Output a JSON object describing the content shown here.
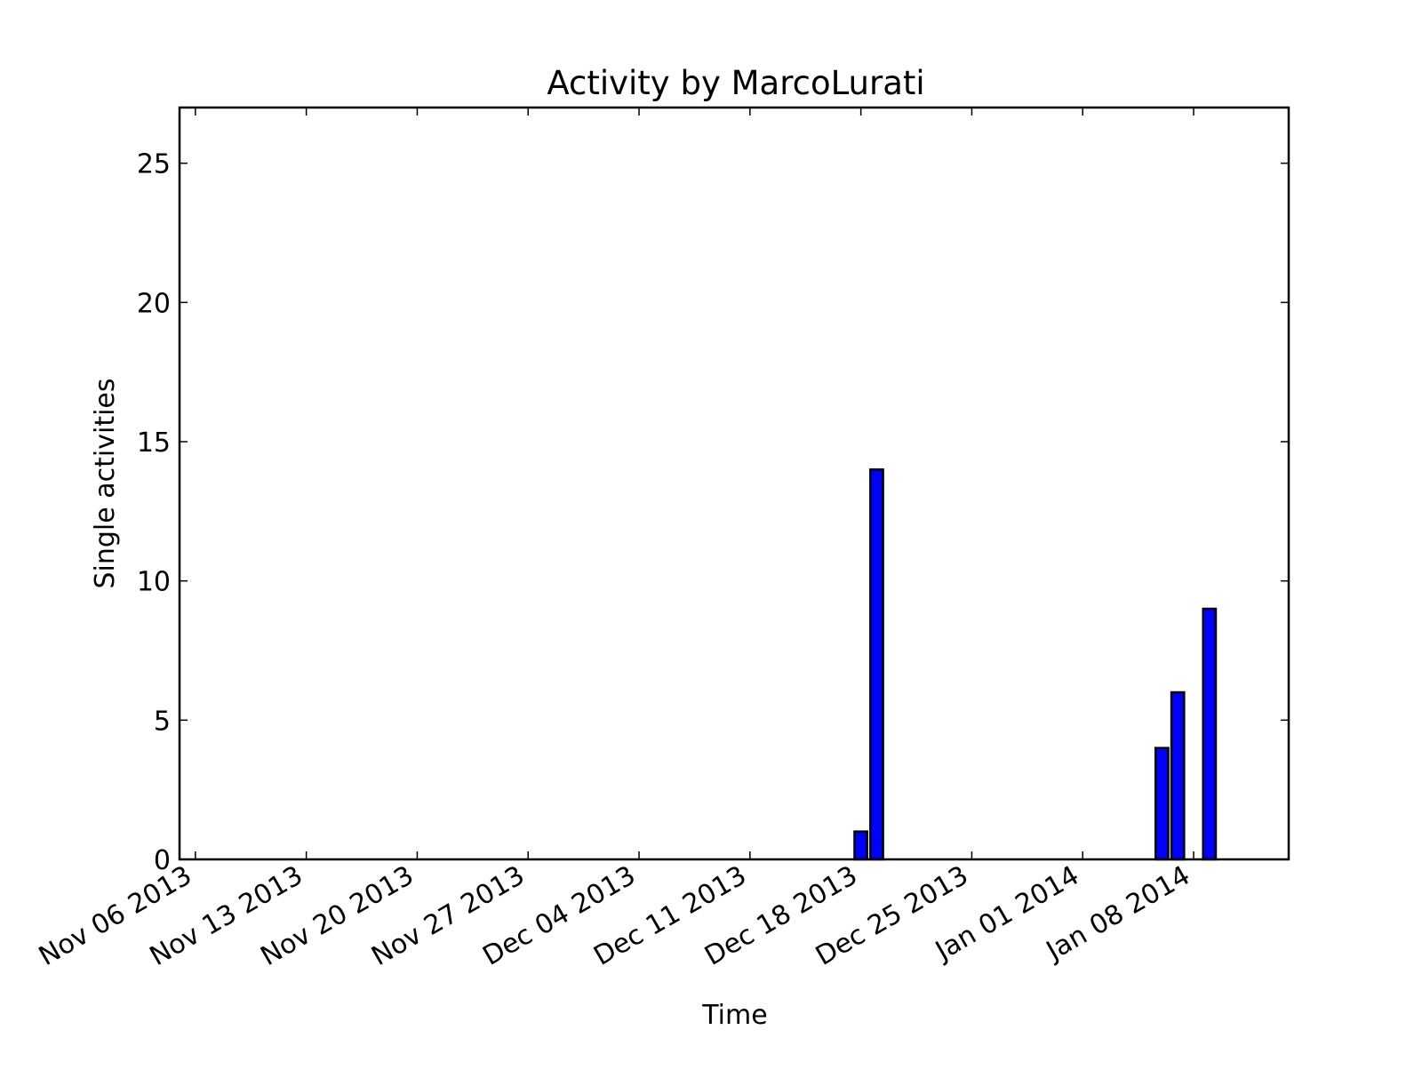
{
  "chart_data": {
    "type": "bar",
    "title": "Activity by MarcoLurati",
    "xlabel": "Time",
    "ylabel": "Single activities",
    "x_axis": {
      "kind": "date",
      "range": [
        "2013-11-05",
        "2014-01-14"
      ],
      "ticks": [
        {
          "date": "2013-11-06",
          "label": "Nov 06 2013"
        },
        {
          "date": "2013-11-13",
          "label": "Nov 13 2013"
        },
        {
          "date": "2013-11-20",
          "label": "Nov 20 2013"
        },
        {
          "date": "2013-11-27",
          "label": "Nov 27 2013"
        },
        {
          "date": "2013-12-04",
          "label": "Dec 04 2013"
        },
        {
          "date": "2013-12-11",
          "label": "Dec 11 2013"
        },
        {
          "date": "2013-12-18",
          "label": "Dec 18 2013"
        },
        {
          "date": "2013-12-25",
          "label": "Dec 25 2013"
        },
        {
          "date": "2014-01-01",
          "label": "Jan 01 2014"
        },
        {
          "date": "2014-01-08",
          "label": "Jan 08 2014"
        }
      ]
    },
    "y_axis": {
      "range": [
        0,
        27
      ],
      "ticks": [
        0,
        5,
        10,
        15,
        20,
        25
      ]
    },
    "series": [
      {
        "color": "#0000ff",
        "points": [
          {
            "date": "2013-12-18",
            "value": 1
          },
          {
            "date": "2013-12-19",
            "value": 14
          },
          {
            "date": "2014-01-06",
            "value": 4
          },
          {
            "date": "2014-01-07",
            "value": 6
          },
          {
            "date": "2014-01-09",
            "value": 9
          }
        ]
      }
    ],
    "grid": false,
    "legend": "none"
  }
}
